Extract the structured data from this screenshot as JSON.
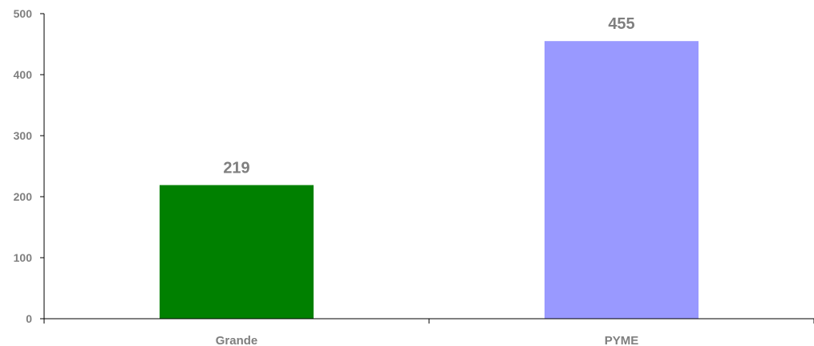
{
  "chart_data": {
    "type": "bar",
    "categories": [
      "Grande",
      "PYME"
    ],
    "values": [
      219,
      455
    ],
    "data_labels": [
      "219",
      "455"
    ],
    "colors": [
      "#008000",
      "#9999ff"
    ],
    "ylim": [
      0,
      500
    ],
    "yticks": [
      0,
      100,
      200,
      300,
      400,
      500
    ],
    "ytick_labels": [
      "0",
      "100",
      "200",
      "300",
      "400",
      "500"
    ],
    "title": "",
    "xlabel": "",
    "ylabel": "",
    "grid": false,
    "legend": "none"
  }
}
